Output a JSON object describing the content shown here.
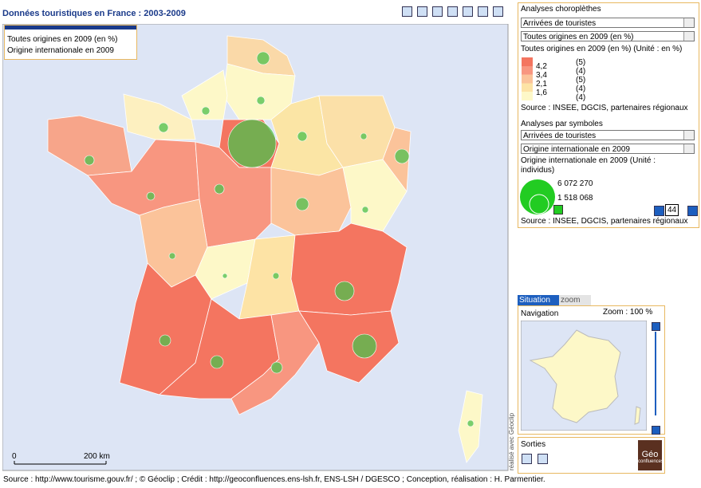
{
  "header": {
    "title": "Données touristiques en France : 2003-2009"
  },
  "map_legend": {
    "items": [
      "Toutes origines en 2009 (en %)",
      "Origine internationale en 2009"
    ]
  },
  "scale": {
    "start": "0",
    "end": "200 km"
  },
  "credit_vertical": "réalisé avec Géoclip",
  "panel": {
    "choropleth": {
      "heading": "Analyses choroplèthes",
      "indicator": "Arrivées de touristes",
      "variable": "Toutes origines en 2009 (en %)",
      "caption": "Toutes origines en 2009 (en %) (Unité : en %)",
      "bounds": [
        "4,2",
        "3,4",
        "2,1",
        "1,6"
      ],
      "counts": [
        "(5)",
        "(4)",
        "(5)",
        "(4)",
        "(4)"
      ],
      "source": "Source : INSEE, DGCIS, partenaires régionaux"
    },
    "symbols": {
      "heading": "Analyses par symboles",
      "indicator": "Arrivées de touristes",
      "variable": "Origine internationale en 2009",
      "caption": "Origine internationale en 2009 (Unité : individus)",
      "max": "6 072 270",
      "min": "1 518 068",
      "size": "44",
      "source": "Source : INSEE, DGCIS, partenaires régionaux"
    }
  },
  "situation": {
    "tabs": [
      "Situation",
      "zoom"
    ],
    "navigation": "Navigation",
    "zoom": "Zoom : 100 %"
  },
  "outputs": {
    "title": "Sorties",
    "logo": [
      "Géo",
      "confluences"
    ]
  },
  "footer": "Source : http://www.tourisme.gouv.fr/ ; © Géoclip ; Crédit : http://geoconfluences.ens-lsh.fr, ENS-LSH / DGESCO ; Conception, réalisation : H. Parmentier."
}
